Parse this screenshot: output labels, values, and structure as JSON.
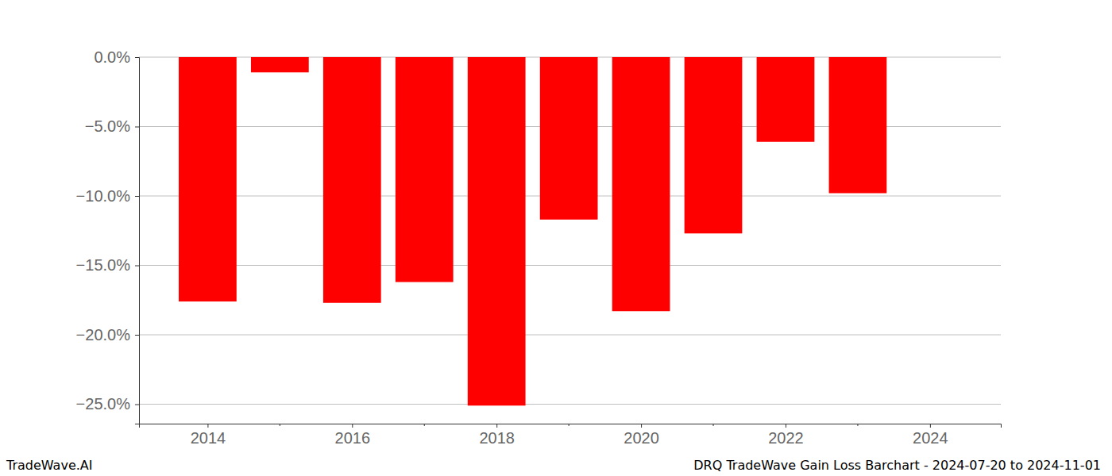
{
  "chart_data": {
    "type": "bar",
    "title": "DRQ TradeWave Gain Loss Barchart - 2024-07-20 to 2024-11-01",
    "annotations": [
      "TradeWave.AI"
    ],
    "x": [
      2014,
      2015,
      2016,
      2017,
      2018,
      2019,
      2020,
      2021,
      2022,
      2023
    ],
    "values": [
      -17.6,
      -1.1,
      -17.7,
      -16.2,
      -25.1,
      -11.7,
      -18.3,
      -12.7,
      -6.1,
      -9.8
    ],
    "color": "#ff0000",
    "xlim": [
      2013.05,
      2024.98
    ],
    "xticks": [
      2014,
      2016,
      2018,
      2020,
      2022,
      2024
    ],
    "ylim": [
      -26.4,
      0
    ],
    "yticks": [
      {
        "value": 0,
        "label": "0.0%"
      },
      {
        "value": -5,
        "label": "−5.0%"
      },
      {
        "value": -10,
        "label": "−10.0%"
      },
      {
        "value": -15,
        "label": "−15.0%"
      },
      {
        "value": -20,
        "label": "−20.0%"
      },
      {
        "value": -25,
        "label": "−25.0%"
      }
    ],
    "grid": true
  }
}
